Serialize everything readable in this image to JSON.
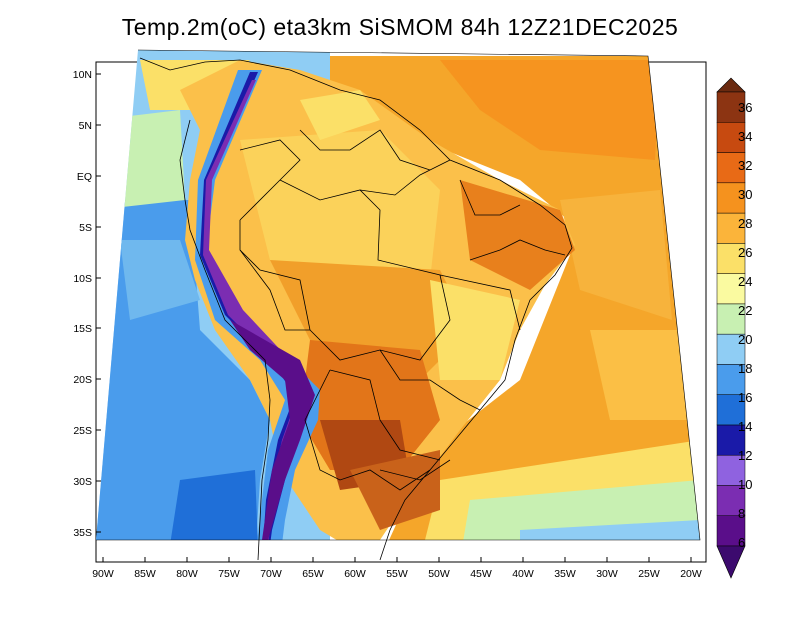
{
  "title": "Temp.2m(oC) eta3km SiSMOM 84h 12Z21DEC2025",
  "map": {
    "variable": "2 m temperature",
    "units": "oC",
    "lat_labels": [
      "10N",
      "5N",
      "EQ",
      "5S",
      "10S",
      "15S",
      "20S",
      "25S",
      "30S",
      "35S"
    ],
    "lat_values": [
      10,
      5,
      0,
      -5,
      -10,
      -15,
      -20,
      -25,
      -30,
      -35
    ],
    "lon_labels": [
      "90W",
      "85W",
      "80W",
      "75W",
      "70W",
      "65W",
      "60W",
      "55W",
      "50W",
      "45W",
      "40W",
      "35W",
      "30W",
      "25W",
      "20W"
    ],
    "lon_values": [
      -90,
      -85,
      -80,
      -75,
      -70,
      -65,
      -60,
      -55,
      -50,
      -45,
      -40,
      -35,
      -30,
      -25,
      -20
    ]
  },
  "colorbar": {
    "labels": [
      "6",
      "8",
      "10",
      "12",
      "14",
      "16",
      "18",
      "20",
      "22",
      "24",
      "26",
      "28",
      "30",
      "32",
      "34",
      "36"
    ],
    "colors": [
      "#5a0e8a",
      "#7b2db2",
      "#8f62e0",
      "#1a1aa8",
      "#1f6fd8",
      "#4a9cec",
      "#8fcdf4",
      "#c8f0b2",
      "#fafaa0",
      "#fbe068",
      "#fbb43a",
      "#f5921e",
      "#e86a16",
      "#c74a10",
      "#8c3412"
    ],
    "under_color": "#3c0a6e",
    "over_color": "#6a2a10"
  }
}
